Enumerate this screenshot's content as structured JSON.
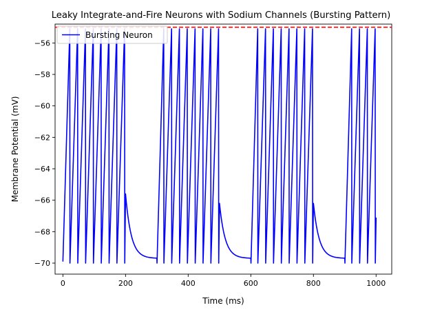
{
  "chart_data": {
    "type": "line",
    "title": "Leaky Integrate-and-Fire Neurons with Sodium Channels (Bursting Pattern)",
    "xlabel": "Time (ms)",
    "ylabel": "Membrane Potential (mV)",
    "xlim": [
      -25,
      1050
    ],
    "ylim": [
      -70.7,
      -54.8
    ],
    "xticks": [
      0,
      200,
      400,
      600,
      800,
      1000
    ],
    "yticks": [
      -70,
      -68,
      -66,
      -64,
      -62,
      -60,
      -58,
      -56
    ],
    "grid": false,
    "legend": {
      "placement": "top-left",
      "entries": [
        "Bursting Neuron"
      ]
    },
    "colors": {
      "series": "#0000ff",
      "threshold": "#ff0000"
    },
    "threshold": {
      "value": -55,
      "style": "dashed"
    },
    "series": [
      {
        "name": "Bursting Neuron",
        "burst_windows": [
          [
            0,
            200
          ],
          [
            300,
            500
          ],
          [
            600,
            800
          ],
          [
            900,
            1000
          ]
        ],
        "spike_times": [
          22,
          47,
          72,
          97,
          122,
          147,
          172,
          197,
          322,
          347,
          372,
          397,
          422,
          447,
          472,
          497,
          622,
          647,
          672,
          697,
          722,
          747,
          772,
          797,
          922,
          947,
          972,
          997
        ],
        "peak": -55.1,
        "reset": -70.0,
        "rest": -69.7,
        "start_value": -69.9,
        "end_value": -67.1,
        "post_burst_peaks": [
          -65.6,
          -66.2,
          -66.2
        ]
      }
    ]
  }
}
